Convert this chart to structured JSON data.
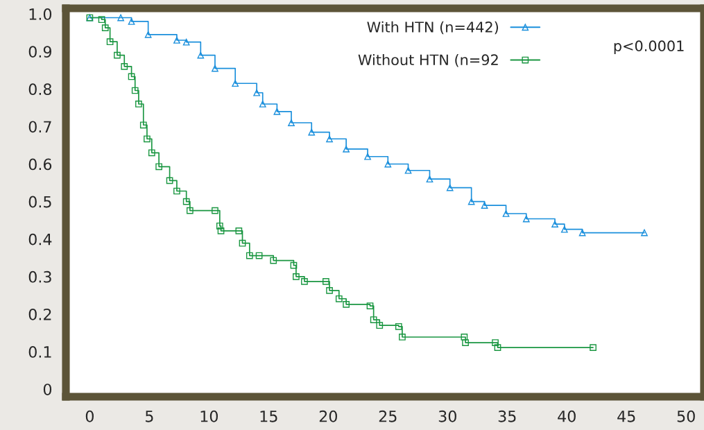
{
  "chart_data": {
    "type": "step",
    "xlim": [
      -2.0,
      51.5
    ],
    "ylim": [
      -0.02,
      1.015
    ],
    "xticks": [
      0,
      5,
      10,
      15,
      20,
      25,
      30,
      35,
      40,
      45,
      50
    ],
    "yticks": [
      {
        "value": 0,
        "label": "0"
      },
      {
        "value": 0.1,
        "label": "0.1"
      },
      {
        "value": 0.2,
        "label": "0.2"
      },
      {
        "value": 0.3,
        "label": "0.3"
      },
      {
        "value": 0.4,
        "label": "0.4"
      },
      {
        "value": 0.5,
        "label": "0.5"
      },
      {
        "value": 0.6,
        "label": "0.6"
      },
      {
        "value": 0.7,
        "label": "0.7"
      },
      {
        "value": 0.8,
        "label": "0.8"
      },
      {
        "value": 0.9,
        "label": "0.9"
      },
      {
        "value": 1.0,
        "label": "1.0"
      }
    ],
    "grid": false,
    "legend": "top",
    "annotations": [
      "p<0.0001"
    ],
    "series": [
      {
        "name": "With HTN (n=442)",
        "color": "#1a8fdc",
        "marker": "triangle",
        "x": [
          0,
          2.6,
          3.5,
          4.9,
          7.3,
          8.1,
          9.3,
          10.5,
          12.2,
          14,
          14.5,
          15.7,
          16.9,
          18.6,
          20.1,
          21.5,
          23.3,
          25,
          26.7,
          28.5,
          30.2,
          32,
          33.1,
          34.9,
          36.6,
          39,
          39.8,
          41.3,
          46.5
        ],
        "values": [
          0.99,
          0.99,
          0.98,
          0.945,
          0.93,
          0.925,
          0.89,
          0.855,
          0.815,
          0.79,
          0.76,
          0.74,
          0.71,
          0.685,
          0.667,
          0.64,
          0.62,
          0.6,
          0.583,
          0.56,
          0.537,
          0.5,
          0.49,
          0.468,
          0.454,
          0.44,
          0.426,
          0.417,
          0.417
        ]
      },
      {
        "name": "Without HTN (n=92",
        "color": "#1a9641",
        "marker": "square",
        "x": [
          0,
          1,
          1.3,
          1.7,
          2.3,
          2.9,
          3.5,
          3.8,
          4.1,
          4.5,
          4.8,
          5.2,
          5.8,
          6.7,
          7.3,
          8.1,
          8.4,
          10.5,
          10.9,
          11,
          12.5,
          12.8,
          13.4,
          14.2,
          15.4,
          17.1,
          17.3,
          18,
          19.8,
          20.1,
          20.9,
          21.5,
          23.5,
          23.8,
          24.3,
          25.9,
          26.2,
          31.4,
          31.5,
          34,
          34.2,
          42.2
        ],
        "values": [
          0.99,
          0.985,
          0.963,
          0.926,
          0.89,
          0.86,
          0.833,
          0.796,
          0.76,
          0.704,
          0.667,
          0.63,
          0.593,
          0.556,
          0.528,
          0.5,
          0.476,
          0.476,
          0.435,
          0.422,
          0.422,
          0.389,
          0.356,
          0.356,
          0.343,
          0.33,
          0.3,
          0.287,
          0.287,
          0.263,
          0.241,
          0.226,
          0.222,
          0.185,
          0.17,
          0.167,
          0.139,
          0.139,
          0.124,
          0.124,
          0.111,
          0.111
        ]
      }
    ]
  }
}
